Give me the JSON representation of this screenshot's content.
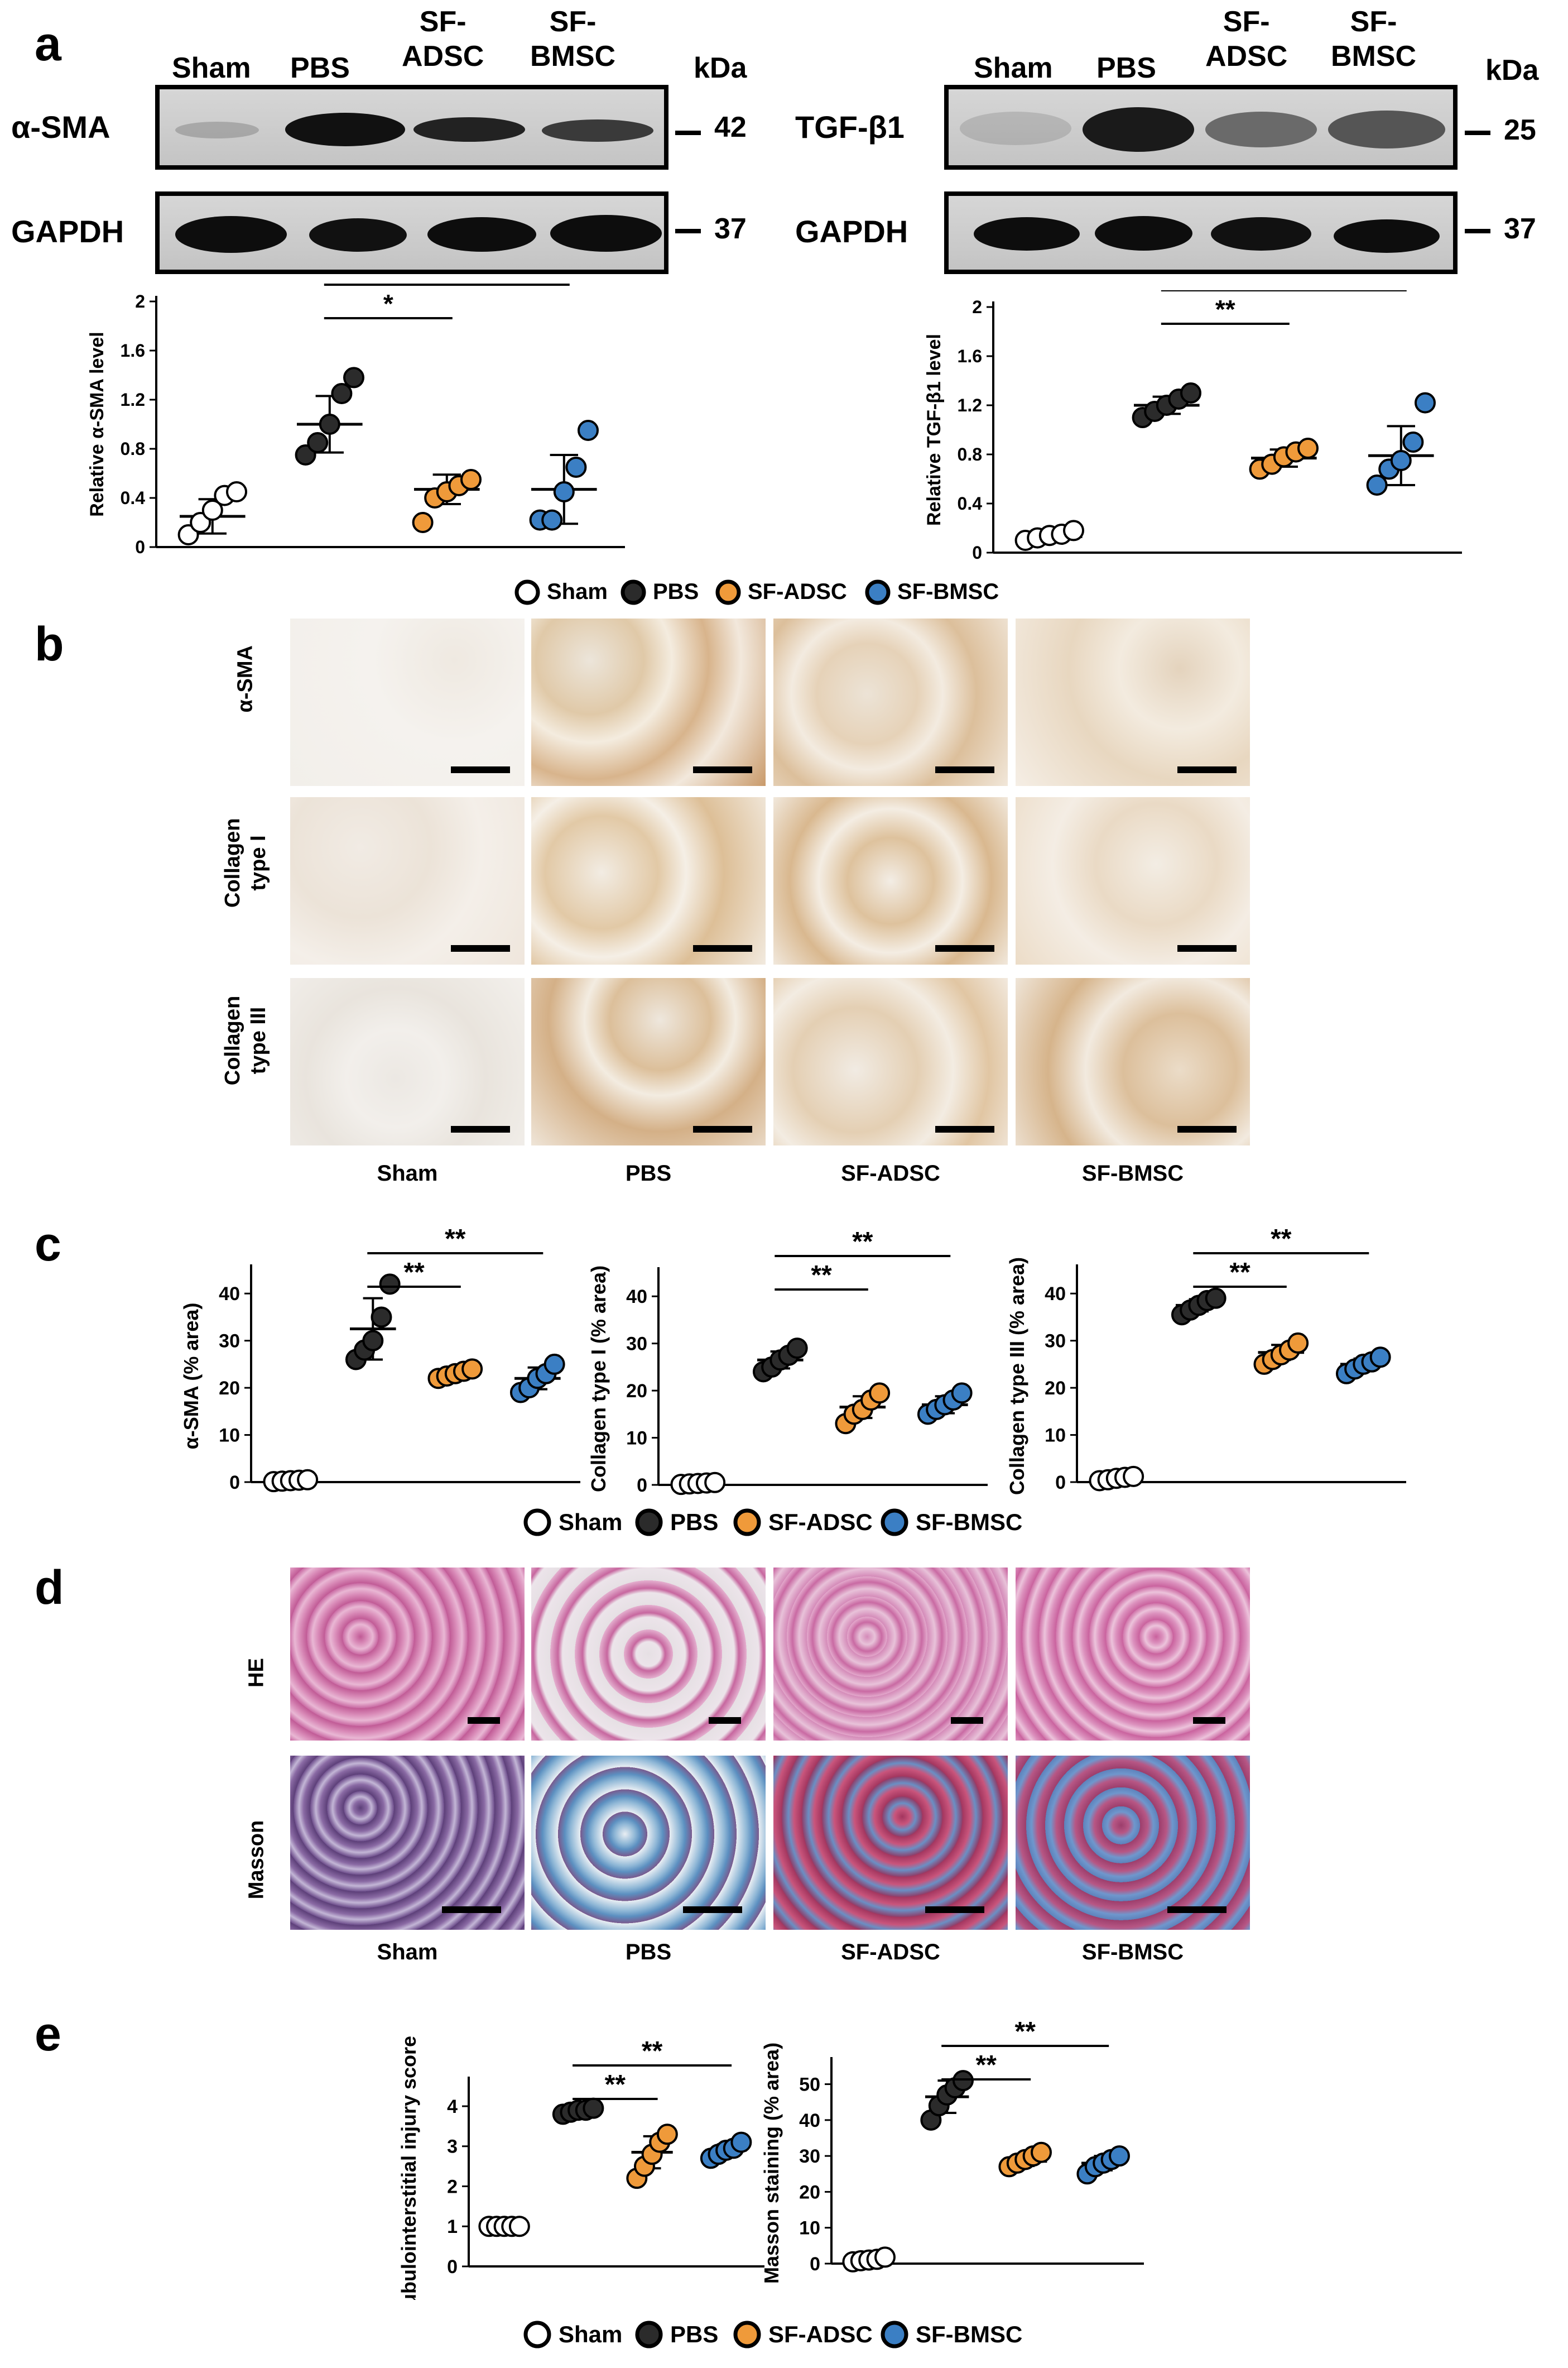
{
  "panels": {
    "a": "a",
    "b": "b",
    "c": "c",
    "d": "d",
    "e": "e"
  },
  "groups": [
    "Sham",
    "PBS",
    "SF-ADSC",
    "SF-BMSC"
  ],
  "wb_headers_left": {
    "sham": "Sham",
    "pbs": "PBS",
    "adsc": "SF-\nADSC",
    "bmsc": "SF-\nBMSC",
    "kda": "kDa"
  },
  "wb_left": {
    "target": "α-SMA",
    "target_kda": "42",
    "loading": "GAPDH",
    "loading_kda": "37"
  },
  "wb_right": {
    "target": "TGF-β1",
    "target_kda": "25",
    "loading": "GAPDH",
    "loading_kda": "37"
  },
  "legend": {
    "sham": "Sham",
    "pbs": "PBS",
    "adsc": "SF-ADSC",
    "bmsc": "SF-BMSC"
  },
  "colors": {
    "sham": "#ffffff",
    "pbs": "#2b2b2b",
    "adsc": "#ef9a3a",
    "bmsc": "#3b7fc4"
  },
  "ihc_rows": [
    "α-SMA",
    "Collagen\ntype I",
    "Collagen\ntype III"
  ],
  "he_rows": [
    "HE",
    "Masson"
  ],
  "chart_data": [
    {
      "id": "a_left",
      "type": "scatter",
      "ylabel": "Relative α-SMA level",
      "yticks": [
        "0",
        "0.4",
        "0.8",
        "1.2",
        "1.6",
        "2"
      ],
      "ylim": [
        0,
        2
      ],
      "points": {
        "Sham": [
          0.1,
          0.2,
          0.3,
          0.42,
          0.45
        ],
        "PBS": [
          0.75,
          0.85,
          1.0,
          1.25,
          1.38
        ],
        "SF-ADSC": [
          0.2,
          0.4,
          0.45,
          0.5,
          0.55
        ],
        "SF-BMSC": [
          0.22,
          0.22,
          0.45,
          0.65,
          0.95
        ]
      },
      "mean": {
        "Sham": 0.25,
        "PBS": 1.0,
        "SF-ADSC": 0.47,
        "SF-BMSC": 0.47
      },
      "sd": {
        "Sham": 0.14,
        "PBS": 0.23,
        "SF-ADSC": 0.12,
        "SF-BMSC": 0.28
      },
      "sig": [
        {
          "from": "PBS",
          "to": "SF-ADSC",
          "label": "*"
        },
        {
          "from": "PBS",
          "to": "SF-BMSC",
          "label": "**"
        }
      ]
    },
    {
      "id": "a_right",
      "type": "scatter",
      "ylabel": "Relative TGF-β1 level",
      "yticks": [
        "0",
        "0.4",
        "0.8",
        "1.2",
        "1.6",
        "2"
      ],
      "ylim": [
        0,
        2
      ],
      "points": {
        "Sham": [
          0.1,
          0.12,
          0.14,
          0.15,
          0.18
        ],
        "PBS": [
          1.1,
          1.15,
          1.2,
          1.25,
          1.3
        ],
        "SF-ADSC": [
          0.68,
          0.72,
          0.78,
          0.82,
          0.85
        ],
        "SF-BMSC": [
          0.55,
          0.68,
          0.75,
          0.9,
          1.22
        ]
      },
      "mean": {
        "Sham": 0.13,
        "PBS": 1.2,
        "SF-ADSC": 0.77,
        "SF-BMSC": 0.79
      },
      "sd": {
        "Sham": 0.03,
        "PBS": 0.07,
        "SF-ADSC": 0.07,
        "SF-BMSC": 0.24
      },
      "sig": [
        {
          "from": "PBS",
          "to": "SF-ADSC",
          "label": "**"
        },
        {
          "from": "PBS",
          "to": "SF-BMSC",
          "label": "**"
        }
      ]
    },
    {
      "id": "c_1",
      "type": "scatter",
      "ylabel": "α-SMA (% area)",
      "yticks": [
        "0",
        "10",
        "20",
        "30",
        "40"
      ],
      "ylim": [
        0,
        45
      ],
      "points": {
        "Sham": [
          0.1,
          0.2,
          0.3,
          0.4,
          0.5
        ],
        "PBS": [
          26,
          28,
          30,
          35,
          42
        ],
        "SF-ADSC": [
          22,
          22.5,
          23,
          23.5,
          24
        ],
        "SF-BMSC": [
          19,
          20,
          22,
          23,
          25
        ]
      },
      "mean": {
        "Sham": 0.3,
        "PBS": 32.5,
        "SF-ADSC": 23,
        "SF-BMSC": 22
      },
      "sd": {
        "Sham": 0.1,
        "PBS": 6.5,
        "SF-ADSC": 0.8,
        "SF-BMSC": 2.3
      },
      "sig": [
        {
          "from": "PBS",
          "to": "SF-ADSC",
          "label": "**"
        },
        {
          "from": "PBS",
          "to": "SF-BMSC",
          "label": "**"
        }
      ]
    },
    {
      "id": "c_2",
      "type": "scatter",
      "ylabel": "Collagen type I (% area)",
      "yticks": [
        "0",
        "10",
        "20",
        "30",
        "40"
      ],
      "ylim": [
        0,
        45
      ],
      "points": {
        "Sham": [
          0.1,
          0.2,
          0.3,
          0.4,
          0.5
        ],
        "PBS": [
          24,
          25,
          26.5,
          27.5,
          29
        ],
        "SF-ADSC": [
          13,
          15,
          16,
          18,
          19.5
        ],
        "SF-BMSC": [
          15,
          16,
          17,
          18,
          19.5
        ]
      },
      "mean": {
        "Sham": 0.3,
        "PBS": 26.5,
        "SF-ADSC": 16.5,
        "SF-BMSC": 17
      },
      "sd": {
        "Sham": 0.1,
        "PBS": 1.8,
        "SF-ADSC": 2.3,
        "SF-BMSC": 1.8
      },
      "sig": [
        {
          "from": "PBS",
          "to": "SF-ADSC",
          "label": "**"
        },
        {
          "from": "PBS",
          "to": "SF-BMSC",
          "label": "**"
        }
      ]
    },
    {
      "id": "c_3",
      "type": "scatter",
      "ylabel": "Collagen type III (% area)",
      "yticks": [
        "0",
        "10",
        "20",
        "30",
        "40"
      ],
      "ylim": [
        0,
        45
      ],
      "points": {
        "Sham": [
          0.3,
          0.5,
          0.8,
          1.0,
          1.2
        ],
        "PBS": [
          35.5,
          36.5,
          37.5,
          38.5,
          39
        ],
        "SF-ADSC": [
          25,
          26,
          27,
          28,
          29.5
        ],
        "SF-BMSC": [
          23,
          24,
          25,
          25.5,
          26.5
        ]
      },
      "mean": {
        "Sham": 0.7,
        "PBS": 37.5,
        "SF-ADSC": 27.5,
        "SF-BMSC": 25
      },
      "sd": {
        "Sham": 0.3,
        "PBS": 1.3,
        "SF-ADSC": 1.6,
        "SF-BMSC": 1.2
      },
      "sig": [
        {
          "from": "PBS",
          "to": "SF-ADSC",
          "label": "**"
        },
        {
          "from": "PBS",
          "to": "SF-BMSC",
          "label": "**"
        }
      ]
    },
    {
      "id": "e_1",
      "type": "scatter",
      "ylabel": "tubulointerstitial injury score",
      "yticks": [
        "0",
        "1",
        "2",
        "3",
        "4"
      ],
      "ylim": [
        0,
        4.6
      ],
      "points": {
        "Sham": [
          1,
          1,
          1,
          1,
          1
        ],
        "PBS": [
          3.8,
          3.85,
          3.9,
          3.9,
          3.95
        ],
        "SF-ADSC": [
          2.2,
          2.5,
          2.8,
          3.1,
          3.3
        ],
        "SF-BMSC": [
          2.7,
          2.8,
          2.9,
          2.95,
          3.1
        ]
      },
      "mean": {
        "Sham": 1,
        "PBS": 3.9,
        "SF-ADSC": 2.85,
        "SF-BMSC": 2.9
      },
      "sd": {
        "Sham": 0,
        "PBS": 0.05,
        "SF-ADSC": 0.4,
        "SF-BMSC": 0.15
      },
      "sig": [
        {
          "from": "PBS",
          "to": "SF-ADSC",
          "label": "**"
        },
        {
          "from": "PBS",
          "to": "SF-BMSC",
          "label": "**"
        }
      ]
    },
    {
      "id": "e_2",
      "type": "scatter",
      "ylabel": "Masson staining (% area)",
      "yticks": [
        "0",
        "10",
        "20",
        "30",
        "40",
        "50"
      ],
      "ylim": [
        0,
        56
      ],
      "points": {
        "Sham": [
          0.5,
          0.8,
          1.0,
          1.2,
          1.8
        ],
        "PBS": [
          40,
          44,
          47,
          49,
          51
        ],
        "SF-ADSC": [
          27,
          28,
          29,
          30,
          31
        ],
        "SF-BMSC": [
          25,
          27,
          28,
          29,
          30
        ]
      },
      "mean": {
        "Sham": 1,
        "PBS": 46.5,
        "SF-ADSC": 28.5,
        "SF-BMSC": 28
      },
      "sd": {
        "Sham": 0.5,
        "PBS": 4.5,
        "SF-ADSC": 1.3,
        "SF-BMSC": 2
      },
      "sig": [
        {
          "from": "PBS",
          "to": "SF-ADSC",
          "label": "**"
        },
        {
          "from": "PBS",
          "to": "SF-BMSC",
          "label": "**"
        }
      ]
    }
  ]
}
